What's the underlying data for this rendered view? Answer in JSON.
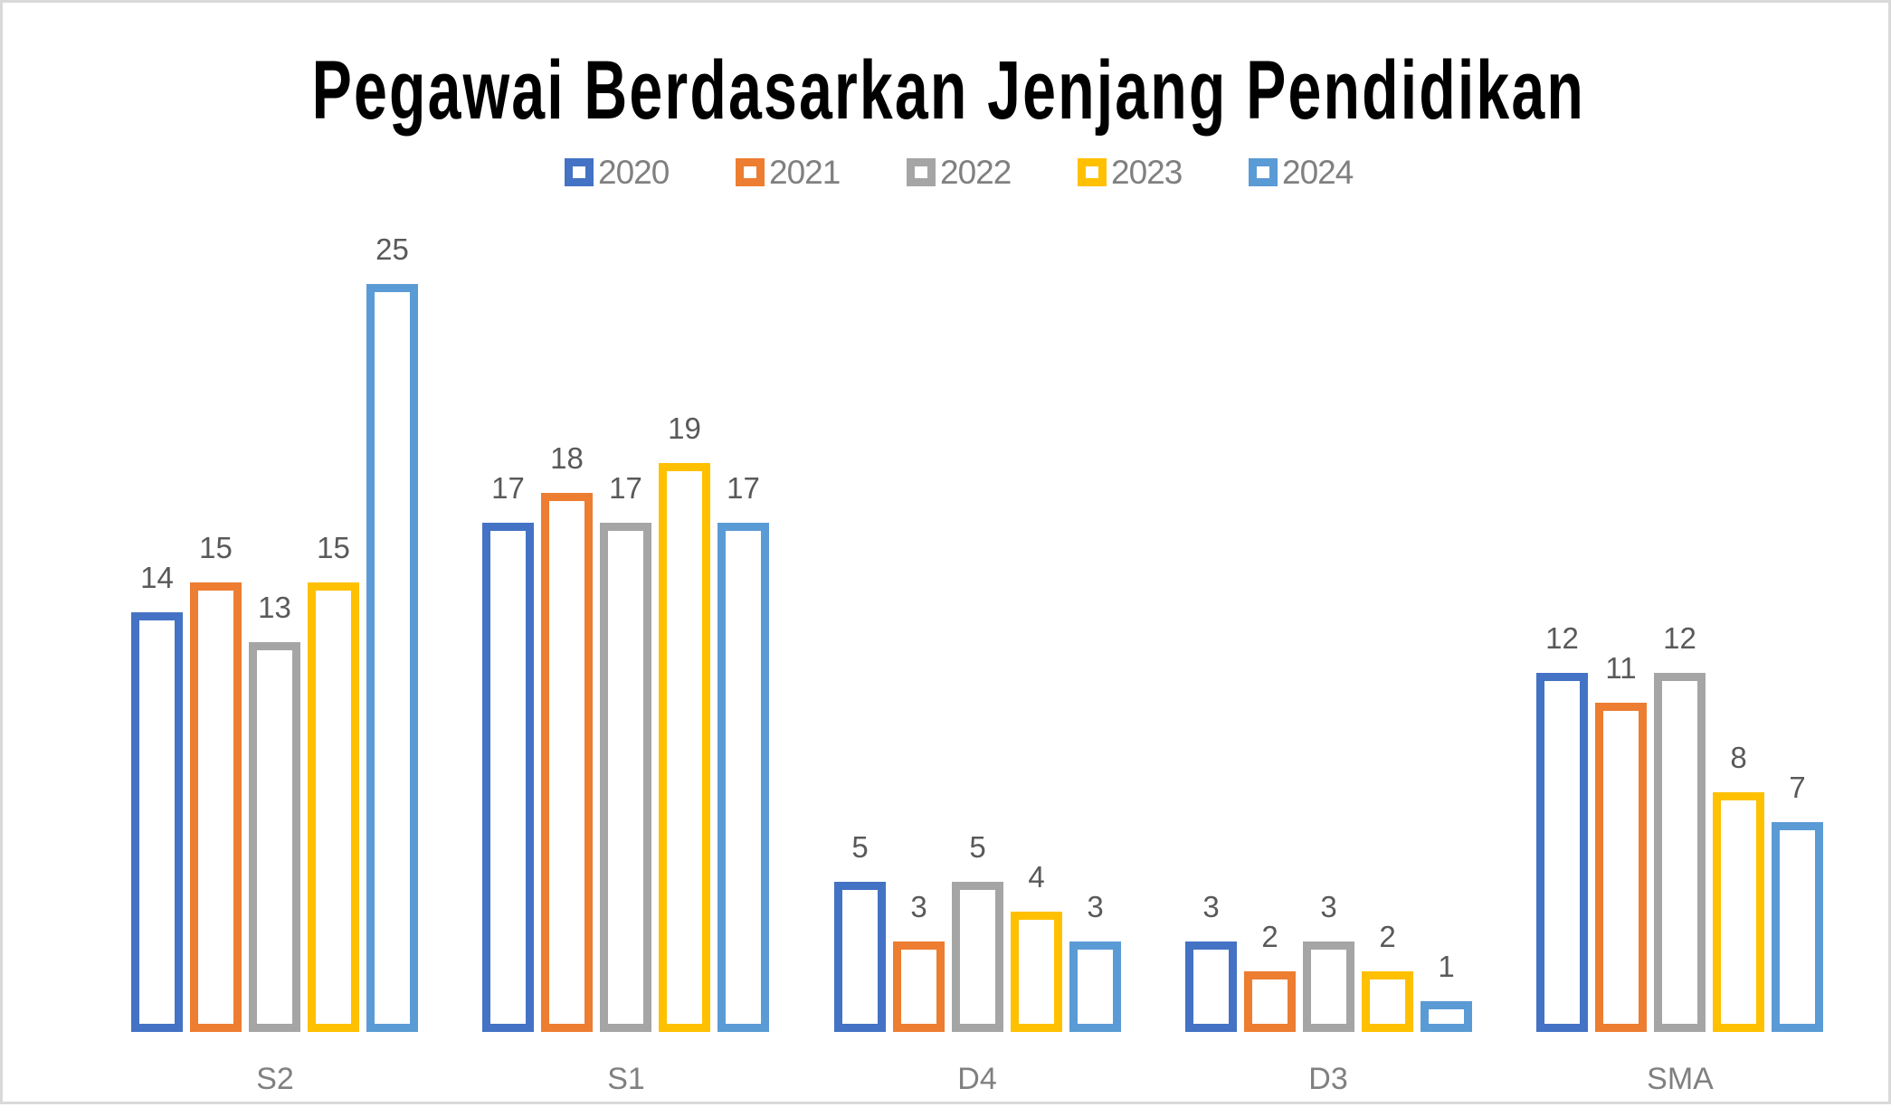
{
  "chart_data": {
    "type": "bar",
    "title": "Pegawai Berdasarkan Jenjang Pendidikan",
    "xlabel": "",
    "ylabel": "",
    "categories": [
      "S2",
      "S1",
      "D4",
      "D3",
      "SMA"
    ],
    "series": [
      {
        "name": "2020",
        "color": "#4472C4",
        "values": [
          14,
          17,
          5,
          3,
          12
        ]
      },
      {
        "name": "2021",
        "color": "#ED7D31",
        "values": [
          15,
          18,
          3,
          2,
          11
        ]
      },
      {
        "name": "2022",
        "color": "#A5A5A5",
        "values": [
          13,
          17,
          5,
          3,
          12
        ]
      },
      {
        "name": "2023",
        "color": "#FFC000",
        "values": [
          15,
          19,
          4,
          2,
          8
        ]
      },
      {
        "name": "2024",
        "color": "#5B9BD5",
        "values": [
          25,
          17,
          3,
          1,
          7
        ]
      }
    ],
    "ylim": [
      0,
      25
    ],
    "grid": false,
    "legend_position": "top",
    "data_labels": true,
    "bar_style": "outline"
  }
}
